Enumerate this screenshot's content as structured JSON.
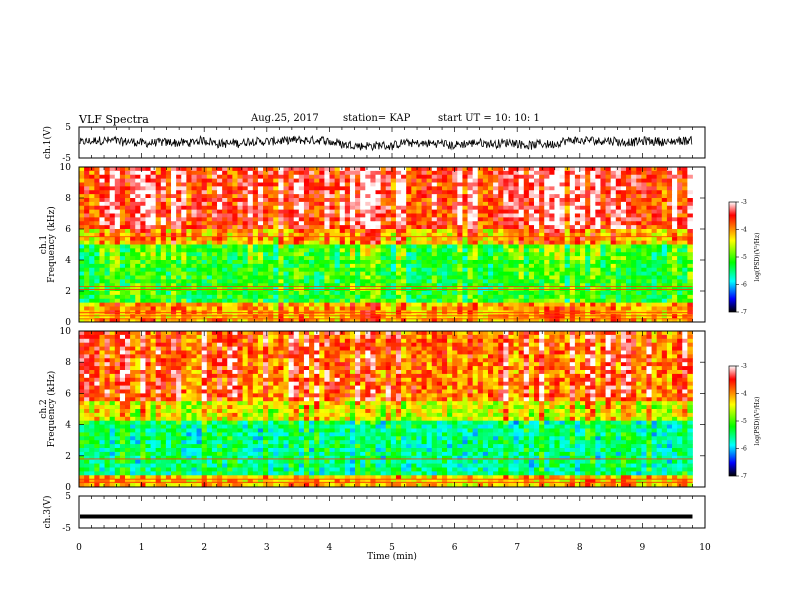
{
  "header": {
    "title": "VLF Spectra",
    "date": "Aug.25, 2017",
    "station": "station= KAP",
    "start_ut": "start  UT =   10: 10: 1"
  },
  "chart_data": [
    {
      "type": "line",
      "panel": "ch1-waveform",
      "ylabel": "ch.1(V)",
      "ylim": [
        -5,
        5
      ],
      "yticks": [
        "5",
        "-5"
      ],
      "xlim": [
        0,
        10
      ],
      "series": [
        {
          "values_range": [
            -3,
            2
          ],
          "color": "#000000"
        }
      ]
    },
    {
      "type": "heatmap",
      "panel": "ch1-spectrogram",
      "ylabel": "ch.1\nFrequency (kHz)",
      "ylim": [
        0,
        10
      ],
      "yticks": [
        "0",
        "2",
        "4",
        "6",
        "8",
        "10"
      ],
      "xlim": [
        0,
        10
      ],
      "colorbar": {
        "label": "log(PSD)(V²/Hz)",
        "ticks": [
          "-3",
          "-4",
          "-5",
          "-6",
          "-7"
        ],
        "range": [
          -7,
          -3
        ]
      }
    },
    {
      "type": "heatmap",
      "panel": "ch2-spectrogram",
      "ylabel": "ch.2\nFrequency (kHz)",
      "ylim": [
        0,
        10
      ],
      "yticks": [
        "0",
        "2",
        "4",
        "6",
        "8",
        "10"
      ],
      "xlim": [
        0,
        10
      ],
      "colorbar": {
        "label": "log(PSD)(V²/Hz)",
        "ticks": [
          "-3",
          "-4",
          "-5",
          "-6",
          "-7"
        ],
        "range": [
          -7,
          -3
        ]
      }
    },
    {
      "type": "line",
      "panel": "ch3-waveform",
      "ylabel": "ch.3(V)",
      "ylim": [
        -5,
        5
      ],
      "yticks": [
        "5",
        "-5"
      ],
      "xlim": [
        0,
        10
      ],
      "series": [
        {
          "values_range": [
            -1.6,
            -1.2
          ],
          "color": "#000000"
        }
      ]
    }
  ],
  "xaxis": {
    "label": "Time  (min)",
    "ticks": [
      "0",
      "1",
      "2",
      "3",
      "4",
      "5",
      "6",
      "7",
      "8",
      "9",
      "10"
    ]
  }
}
